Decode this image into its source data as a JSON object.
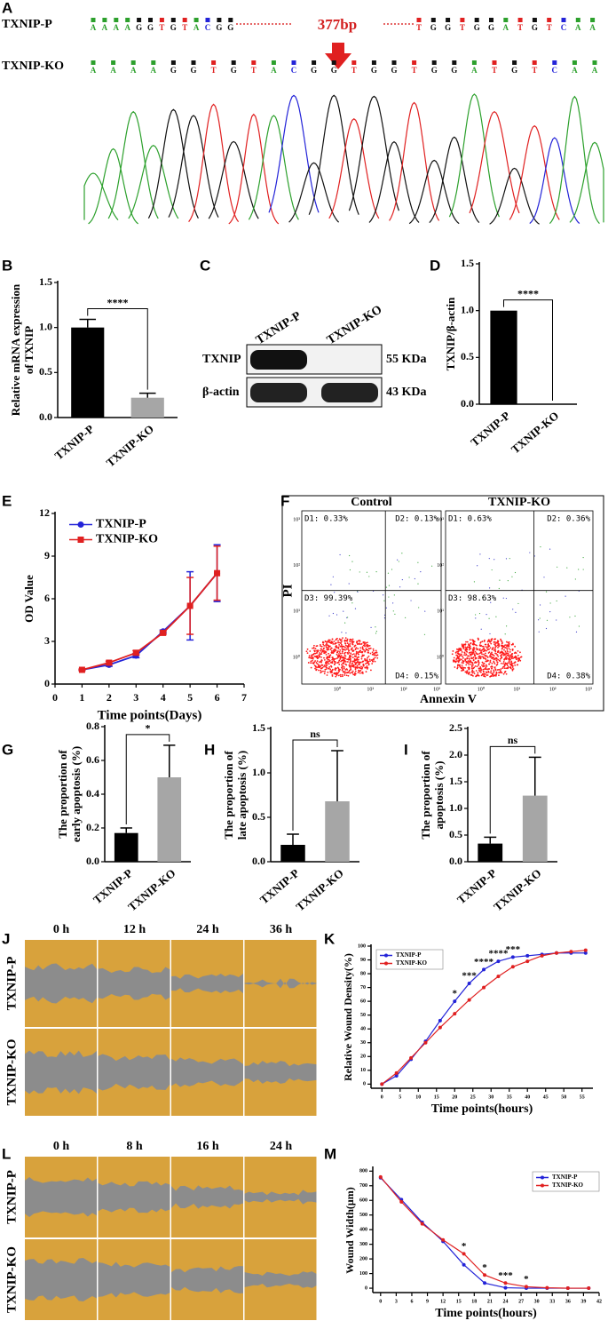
{
  "panel_a": {
    "label": "A",
    "row_p": "TXNIP-P",
    "row_ko": "TXNIP-KO",
    "seq_p_left": "AAAAGGTGTACGG",
    "seq_p_right": "TGGTGGATGTCAA",
    "seq_ko": "AAAAGGTGTACGGTGGTGGATGTCAA",
    "deletion": "377bp"
  },
  "panel_c": {
    "label": "C",
    "lanes": [
      "TXNIP-P",
      "TXNIP-KO"
    ],
    "rows": [
      "TXNIP",
      "β-actin"
    ],
    "sizes": [
      "55 KDa",
      "43 KDa"
    ]
  },
  "panel_f": {
    "label": "F",
    "plots": [
      {
        "title": "Control",
        "quadrants": [
          "D1: 0.33%",
          "D2: 0.13%",
          "D3: 99.39%",
          "D4: 0.15%"
        ]
      },
      {
        "title": "TXNIP-KO",
        "quadrants": [
          "D1: 0.63%",
          "D2: 0.36%",
          "D3: 98.63%",
          "D4: 0.38%"
        ]
      }
    ],
    "y_label": "PI",
    "x_label": "Annexin V",
    "ticks": [
      "10⁰",
      "10¹",
      "10²",
      "10³"
    ]
  },
  "panel_j": {
    "label": "J",
    "times": [
      "0 h",
      "12 h",
      "24 h",
      "36 h"
    ],
    "rows": [
      "TXNIP-P",
      "TXNIP-KO"
    ]
  },
  "panel_l": {
    "label": "L",
    "times": [
      "0 h",
      "8 h",
      "16 h",
      "24 h"
    ],
    "rows": [
      "TXNIP-P",
      "TXNIP-KO"
    ]
  },
  "chart_data": [
    {
      "type": "bar",
      "label": "B",
      "y_label": [
        "Relative mRNA expression",
        "of TXNIP"
      ],
      "categories": [
        "TXNIP-P",
        "TXNIP-KO"
      ],
      "values": [
        1.0,
        0.22
      ],
      "errors": [
        0.09,
        0.05
      ],
      "colors": [
        "#000000",
        "#a6a6a6"
      ],
      "ylim": [
        0,
        1.5
      ],
      "yticks": [
        {
          "value": 0,
          "label": "0.0"
        },
        0.5,
        {
          "value": 1,
          "label": "1.0"
        },
        1.5
      ],
      "significance": "****"
    },
    {
      "type": "bar",
      "label": "D",
      "y_label": "TXNIP/β-actin",
      "categories": [
        "TXNIP-P",
        "TXNIP-KO"
      ],
      "values": [
        1.0,
        0
      ],
      "colors": [
        "#000000",
        "#a6a6a6"
      ],
      "ylim": [
        0,
        1.5
      ],
      "yticks": [
        {
          "value": 0,
          "label": "0.0"
        },
        0.5,
        {
          "value": 1,
          "label": "1.0"
        },
        1.5
      ],
      "significance": "****"
    },
    {
      "type": "line",
      "label": "E",
      "y_label": "OD Value",
      "x_label": "Time points(Days)",
      "x": [
        1,
        2,
        3,
        4,
        5,
        6
      ],
      "xlim": [
        0,
        7
      ],
      "xticks": [
        0,
        1,
        2,
        3,
        4,
        5,
        6,
        7
      ],
      "ylim": [
        0,
        12
      ],
      "yticks": [
        0,
        3,
        6,
        9,
        12
      ],
      "legend": "upper left",
      "legend_frame": false,
      "series": [
        {
          "name": "TXNIP-P",
          "color": "#2323d8",
          "marker": "circle",
          "values": [
            1.0,
            1.35,
            2.0,
            3.7,
            5.5,
            7.8
          ],
          "errors": [
            0.05,
            0.1,
            0.15,
            0.1,
            2.4,
            2.0
          ]
        },
        {
          "name": "TXNIP-KO",
          "color": "#e02020",
          "marker": "square",
          "values": [
            1.0,
            1.5,
            2.2,
            3.6,
            5.5,
            7.8
          ],
          "errors": [
            0.05,
            0.1,
            0.15,
            0.1,
            2.0,
            1.9
          ]
        }
      ]
    },
    {
      "type": "bar",
      "label": "G",
      "y_label": [
        "The proportion of",
        "early apoptosis (%)"
      ],
      "categories": [
        "TXNIP-P",
        "TXNIP-KO"
      ],
      "values": [
        0.17,
        0.5
      ],
      "errors": [
        0.03,
        0.19
      ],
      "colors": [
        "#000000",
        "#a6a6a6"
      ],
      "ylim": [
        0,
        0.8
      ],
      "yticks": [
        {
          "value": 0,
          "label": "0.0"
        },
        0.2,
        0.4,
        0.6,
        0.8
      ],
      "significance": "*"
    },
    {
      "type": "bar",
      "label": "H",
      "y_label": [
        "The proportion of",
        "late apoptosis (%)"
      ],
      "categories": [
        "TXNIP-P",
        "TXNIP-KO"
      ],
      "values": [
        0.19,
        0.68
      ],
      "errors": [
        0.12,
        0.57
      ],
      "colors": [
        "#000000",
        "#a6a6a6"
      ],
      "ylim": [
        0,
        1.5
      ],
      "yticks": [
        {
          "value": 0,
          "label": "0.0"
        },
        0.5,
        {
          "value": 1,
          "label": "1.0"
        },
        1.5
      ],
      "significance": "ns"
    },
    {
      "type": "bar",
      "label": "I",
      "y_label": [
        "The proportion of",
        "apoptosis (%)"
      ],
      "categories": [
        "TXNIP-P",
        "TXNIP-KO"
      ],
      "values": [
        0.34,
        1.24
      ],
      "errors": [
        0.12,
        0.72
      ],
      "colors": [
        "#000000",
        "#a6a6a6"
      ],
      "ylim": [
        0,
        2.5
      ],
      "yticks": [
        {
          "value": 0,
          "label": "0.0"
        },
        0.5,
        {
          "value": 1,
          "label": "1.0"
        },
        1.5,
        {
          "value": 2,
          "label": "2.0"
        },
        2.5
      ],
      "significance": "ns"
    },
    {
      "type": "line",
      "label": "K",
      "y_label": "Relative Wound Density(%)",
      "x_label": "Time points(hours)",
      "x": [
        0,
        4,
        8,
        12,
        16,
        20,
        24,
        28,
        32,
        36,
        40,
        44,
        48,
        52,
        56
      ],
      "xlim": [
        -3,
        58
      ],
      "xticks": [
        0,
        5,
        10,
        15,
        20,
        25,
        30,
        35,
        40,
        45,
        50,
        55
      ],
      "ylim": [
        -3,
        100
      ],
      "yticks": [
        0,
        10,
        20,
        30,
        40,
        50,
        60,
        70,
        80,
        90,
        100
      ],
      "legend": "upper left",
      "legend_frame": true,
      "series": [
        {
          "name": "TXNIP-P",
          "color": "#2323d8",
          "marker": "circle",
          "values": [
            0,
            6,
            18,
            31,
            46,
            60,
            73,
            83,
            89,
            92,
            93,
            94,
            95,
            95,
            95
          ]
        },
        {
          "name": "TXNIP-KO",
          "color": "#e02020",
          "marker": "circle",
          "values": [
            0,
            8,
            19,
            30,
            41,
            51,
            61,
            70,
            78,
            85,
            89,
            93,
            95,
            96,
            97
          ]
        }
      ],
      "annotations": [
        {
          "text": "*",
          "x": 20
        },
        {
          "text": "***",
          "x": 24
        },
        {
          "text": "****",
          "x": 28
        },
        {
          "text": "****",
          "x": 32
        },
        {
          "text": "***",
          "x": 36
        }
      ]
    },
    {
      "type": "line",
      "label": "M",
      "y_label": "Wound Width(μm)",
      "x_label": "Time points(hours)",
      "x": [
        0,
        4,
        8,
        12,
        16,
        20,
        24,
        28,
        32,
        36,
        40
      ],
      "xlim": [
        -1.5,
        42
      ],
      "xticks": [
        0,
        3,
        6,
        9,
        12,
        15,
        18,
        21,
        24,
        27,
        30,
        33,
        36,
        39,
        42
      ],
      "ylim": [
        -30,
        820
      ],
      "yticks": [
        0,
        100,
        200,
        300,
        400,
        500,
        600,
        700,
        800
      ],
      "legend": "upper right",
      "legend_frame": true,
      "series": [
        {
          "name": "TXNIP-P",
          "color": "#2323d8",
          "marker": "circle",
          "values": [
            755,
            605,
            450,
            320,
            160,
            35,
            3,
            0,
            0,
            0,
            0
          ]
        },
        {
          "name": "TXNIP-KO",
          "color": "#e02020",
          "marker": "circle",
          "values": [
            760,
            590,
            440,
            330,
            235,
            90,
            35,
            10,
            3,
            0,
            0
          ]
        }
      ],
      "annotations": [
        {
          "text": "*",
          "x": 16
        },
        {
          "text": "*",
          "x": 20
        },
        {
          "text": "***",
          "x": 24
        },
        {
          "text": "*",
          "x": 28
        }
      ]
    }
  ]
}
